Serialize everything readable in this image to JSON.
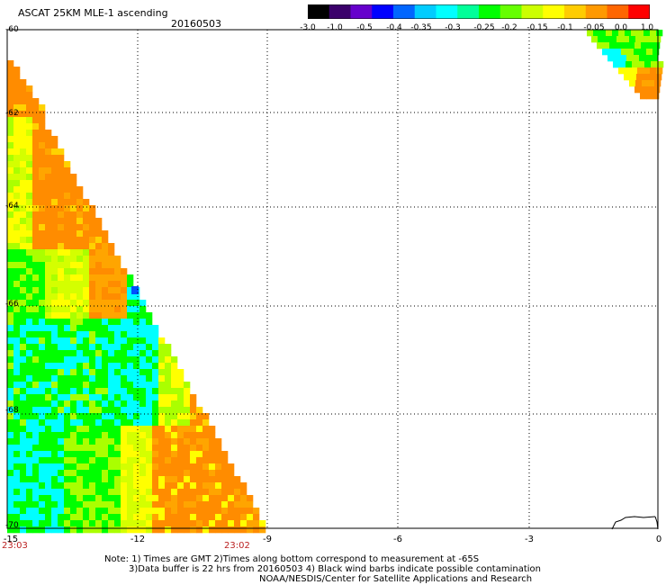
{
  "header": {
    "title": "ASCAT 25KM MLE-1 ascending",
    "date": "20160503"
  },
  "colorbar": {
    "labels": [
      "-3.0",
      "-1.0",
      "-0.5",
      "-0.4",
      "-0.35",
      "-0.3",
      "-0.25",
      "-0.2",
      "-0.15",
      "-0.1",
      "-0.05",
      "0.0",
      "1.0"
    ],
    "colors": [
      "#000000",
      "#3b006b",
      "#6600cc",
      "#0000ff",
      "#0066ff",
      "#00ccff",
      "#00ffff",
      "#00ff99",
      "#00ff00",
      "#66ff00",
      "#ccff00",
      "#ffff00",
      "#ffcc00",
      "#ff9900",
      "#ff6600",
      "#ff0000"
    ]
  },
  "axes": {
    "lat_labels": [
      "-60",
      "-62",
      "-64",
      "-66",
      "-68",
      "-70"
    ],
    "lon_labels": [
      "-15",
      "-12",
      "-9",
      "-6",
      "-3",
      "0"
    ],
    "time_labels": [
      "23:03",
      "23:02"
    ]
  },
  "notes": {
    "line1": "Note: 1) Times are GMT 2)Times along bottom correspond to measurement at -65S",
    "line2": "3)Data buffer is 22 hrs from 20160503 4) Black wind barbs indicate possible contamination",
    "line3": "NOAA/NESDIS/Center for Satellite Applications and Research"
  },
  "colors": {
    "orange": "#ff8c00",
    "yellow": "#ffff00",
    "green": "#00ff00",
    "cyan": "#00ffff",
    "red": "#ff3b00"
  }
}
